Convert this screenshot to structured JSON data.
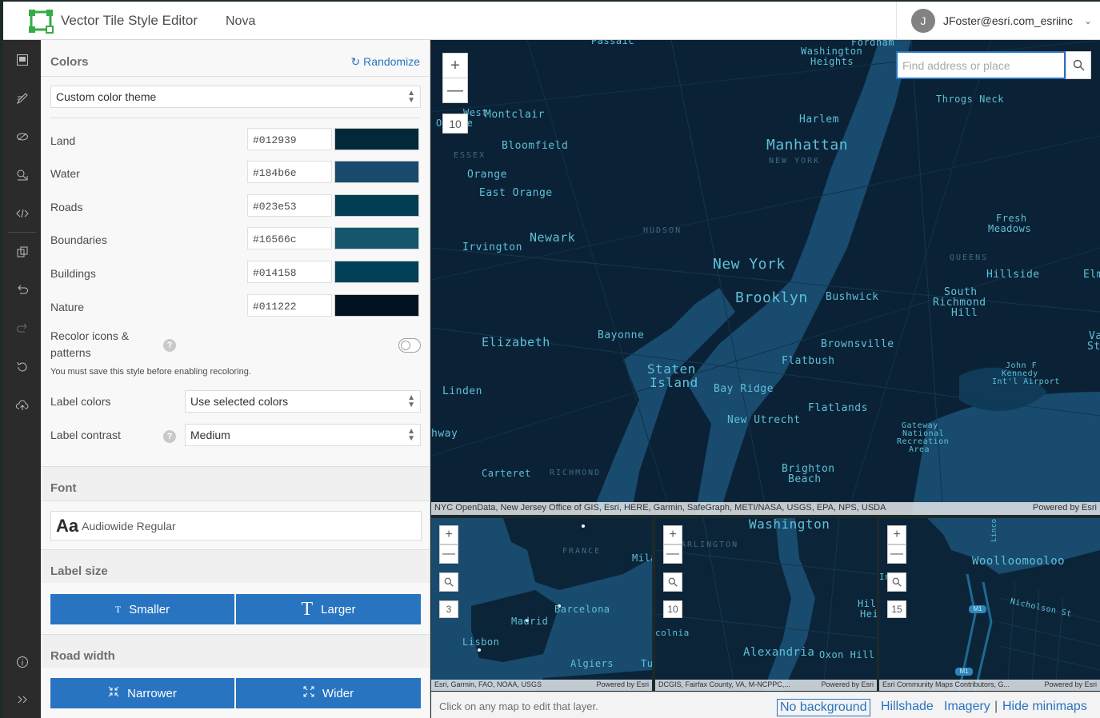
{
  "header": {
    "app_title": "Vector Tile Style Editor",
    "style_name": "Nova",
    "user_initial": "J",
    "username": "JFoster@esri.com_esriinc"
  },
  "colors": {
    "section_title": "Colors",
    "randomize_label": "Randomize",
    "theme_select": "Custom color theme",
    "rows": [
      {
        "label": "Land",
        "hex": "#012939",
        "color": "#012939"
      },
      {
        "label": "Water",
        "hex": "#184b6e",
        "color": "#184b6e"
      },
      {
        "label": "Roads",
        "hex": "#023e53",
        "color": "#023e53"
      },
      {
        "label": "Boundaries",
        "hex": "#16566c",
        "color": "#16566c"
      },
      {
        "label": "Buildings",
        "hex": "#014158",
        "color": "#014158"
      },
      {
        "label": "Nature",
        "hex": "#011222",
        "color": "#011222"
      }
    ],
    "recolor_label": "Recolor icons &",
    "recolor_label2": "patterns",
    "recolor_note": "You must save this style before enabling recoloring.",
    "label_colors_label": "Label colors",
    "label_colors_value": "Use selected colors",
    "label_contrast_label": "Label contrast",
    "label_contrast_value": "Medium"
  },
  "font": {
    "section_title": "Font",
    "glyph": "Aa",
    "value": "Audiowide Regular"
  },
  "label_size": {
    "section_title": "Label size",
    "smaller": "Smaller",
    "larger": "Larger"
  },
  "road_width": {
    "section_title": "Road width",
    "narrower": "Narrower",
    "wider": "Wider"
  },
  "main_map": {
    "search_placeholder": "Find address or place",
    "zoom_level": "10",
    "attribution": "NYC OpenData, New Jersey Office of GIS, Esri, HERE, Garmin, SafeGraph, METI/NASA, USGS, EPA, NPS, USDA",
    "powered": "Powered by Esri",
    "labels": {
      "passaic": "Passaic",
      "fordham": "Fordham",
      "washington_heights": "Washington",
      "washington_heights2": "Heights",
      "west_orange1": "West",
      "west_orange2": "Orange",
      "montclair": "Montclair",
      "throgs_neck": "Throgs Neck",
      "harlem": "Harlem",
      "bloomfield": "Bloomfield",
      "manhattan": "Manhattan",
      "new_york_county": "NEW YORK",
      "essex": "ESSEX",
      "orange": "Orange",
      "east_orange": "East Orange",
      "fresh_meadows1": "Fresh",
      "fresh_meadows2": "Meadows",
      "hudson": "HUDSON",
      "newark": "Newark",
      "irvington": "Irvington",
      "queens": "QUEENS",
      "new_york": "New York",
      "hillside": "Hillside",
      "elm": "Elm",
      "brooklyn": "Brooklyn",
      "bushwick": "Bushwick",
      "south_richmond1": "South",
      "south_richmond2": "Richmond",
      "south_richmond3": "Hill",
      "elizabeth": "Elizabeth",
      "bayonne": "Bayonne",
      "valley_stream1": "Val",
      "valley_stream2": "Stre",
      "brownsville": "Brownsville",
      "flatbush": "Flatbush",
      "jfk1": "John F",
      "jfk2": "Kennedy",
      "jfk3": "Int'l Airport",
      "staten_island1": "Staten",
      "staten_island2": "Island",
      "linden": "Linden",
      "bay_ridge": "Bay Ridge",
      "flatlands": "Flatlands",
      "new_utrecht": "New Utrecht",
      "gateway1": "Gateway",
      "gateway2": "National",
      "gateway3": "Recreation",
      "gateway4": "Area",
      "highway": "hway",
      "carteret": "Carteret",
      "richmond": "RICHMOND",
      "brighton1": "Brighton",
      "brighton2": "Beach"
    }
  },
  "minimaps": [
    {
      "zoom": "3",
      "attribution": "Esri, Garmin, FAO, NOAA, USGS",
      "powered": "Powered by Esri",
      "labels": {
        "france": "FRANCE",
        "milan": "Mila",
        "barcelona": "Barcelona",
        "madrid": "Madrid",
        "lisbon": "Lisbon",
        "algiers": "Algiers",
        "tunis": "Tu"
      }
    },
    {
      "zoom": "10",
      "attribution": "DCGIS, Fairfax County, VA, M-NCPPC,...",
      "powered": "Powered by Esri",
      "labels": {
        "washington": "Washington",
        "arlington": "ARLINGTON",
        "hill1": "Hill",
        "hill2": "Hei",
        "colnia": "colnia",
        "alexandria": "Alexandria",
        "oxon_hill": "Oxon Hill"
      }
    },
    {
      "zoom": "15",
      "attribution": "Esri Community Maps Contributors, G...",
      "powered": "Powered by Esri",
      "labels": {
        "woolloomooloo": "Woolloomooloo",
        "nicholson": "Nicholson St",
        "lincoln": "Linco",
        "m1a": "M1",
        "m1b": "M1",
        "in": "In"
      }
    }
  ],
  "footer": {
    "hint": "Click on any map to edit that layer.",
    "no_background": "No background",
    "hillshade": "Hillshade",
    "imagery": "Imagery",
    "separator": "|",
    "hide_minimaps": "Hide minimaps"
  }
}
